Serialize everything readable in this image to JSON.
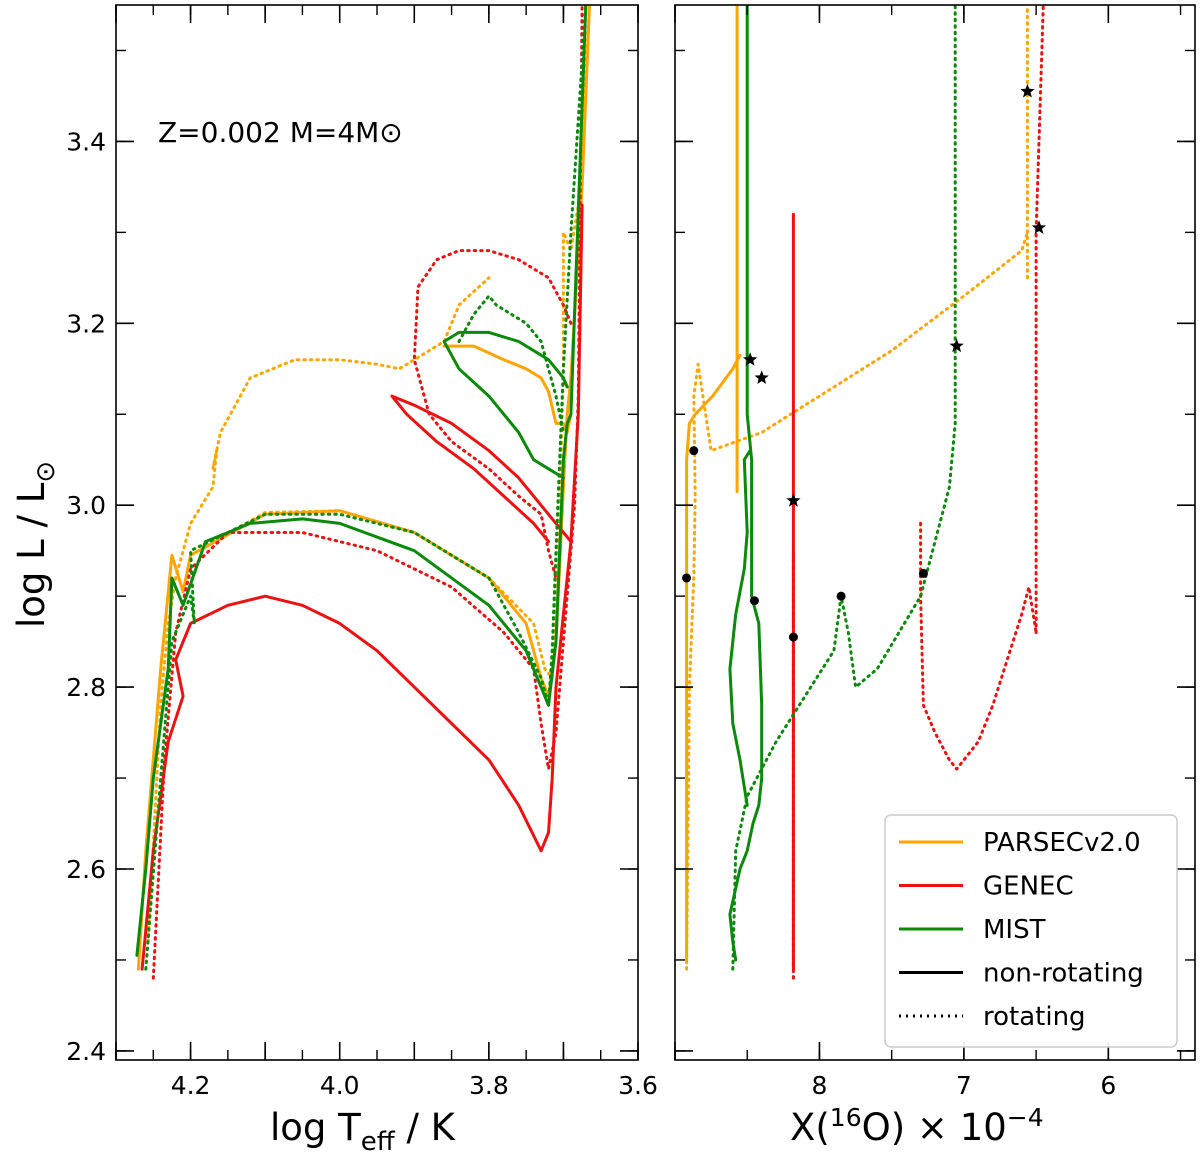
{
  "chart_data": [
    {
      "type": "line",
      "panel": "left",
      "annotation": "Z=0.002  M=4M⊙",
      "xlabel_main": "log T",
      "xlabel_sub": "eff",
      "xlabel_tail": " / K",
      "ylabel_main": "log L / L",
      "ylabel_sub": "⊙",
      "xlim": [
        4.3,
        3.6
      ],
      "ylim": [
        2.39,
        3.55
      ],
      "xticks": [
        4.2,
        4.0,
        3.8,
        3.6
      ],
      "xtick_labels": [
        "4.2",
        "4.0",
        "3.8",
        "3.6"
      ],
      "yticks": [
        2.4,
        2.6,
        2.8,
        3.0,
        3.2,
        3.4
      ],
      "ytick_labels": [
        "2.4",
        "2.6",
        "2.8",
        "3.0",
        "3.2",
        "3.4"
      ],
      "series": [
        {
          "name": "PARSEC rotating",
          "model": "PARSECv2.0",
          "color": "#ffa500",
          "style": "dotted",
          "x": [
            4.257,
            4.24,
            4.23,
            4.22,
            4.2,
            4.17,
            4.165,
            4.17,
            4.16,
            4.12,
            4.06,
            4.0,
            3.95,
            3.92,
            3.9,
            3.86,
            3.84,
            3.8
          ],
          "y": [
            2.52,
            2.78,
            2.87,
            2.92,
            2.98,
            3.02,
            3.06,
            3.04,
            3.08,
            3.14,
            3.16,
            3.16,
            3.155,
            3.15,
            3.16,
            3.18,
            3.22,
            3.25
          ]
        },
        {
          "name": "PARSEC rotating RGB",
          "model": "PARSECv2.0",
          "color": "#ffa500",
          "style": "dotted",
          "x": [
            4.2,
            4.1,
            4.0,
            3.9,
            3.8,
            3.74,
            3.725,
            3.715,
            3.71,
            3.705,
            3.7,
            3.7,
            3.69,
            3.68,
            3.665
          ],
          "y": [
            2.945,
            2.992,
            2.994,
            2.97,
            2.92,
            2.87,
            2.82,
            2.81,
            2.88,
            3.0,
            3.15,
            3.3,
            3.28,
            3.33,
            3.55
          ]
        },
        {
          "name": "PARSEC non-rotating",
          "model": "PARSECv2.0",
          "color": "#ffa500",
          "style": "solid",
          "x": [
            4.27,
            4.26,
            4.24,
            4.225,
            4.21,
            4.2,
            4.1,
            4.0,
            3.9,
            3.8,
            3.75,
            3.73,
            3.72,
            3.71,
            3.7,
            3.695,
            3.69,
            3.675,
            3.665
          ],
          "y": [
            2.49,
            2.62,
            2.82,
            2.945,
            2.905,
            2.945,
            2.99,
            2.994,
            2.97,
            2.92,
            2.87,
            2.81,
            2.79,
            2.85,
            3.02,
            3.1,
            3.14,
            3.35,
            3.55
          ]
        },
        {
          "name": "PARSEC blue loop",
          "model": "PARSECv2.0",
          "color": "#ffa500",
          "style": "solid",
          "x": [
            3.86,
            3.82,
            3.78,
            3.75,
            3.73,
            3.72,
            3.71,
            3.7,
            3.695,
            3.69
          ],
          "y": [
            3.175,
            3.175,
            3.16,
            3.15,
            3.14,
            3.125,
            3.09,
            3.09,
            3.08,
            3.1
          ]
        },
        {
          "name": "GENEC rotating",
          "model": "GENEC",
          "color": "#ee1111",
          "style": "dotted",
          "x": [
            4.25,
            4.235,
            4.22,
            4.2,
            4.15,
            4.05,
            3.95,
            3.85,
            3.78,
            3.74,
            3.73,
            3.72,
            3.71,
            3.7,
            3.685,
            3.68,
            3.675
          ],
          "y": [
            2.48,
            2.72,
            2.86,
            2.93,
            2.97,
            2.97,
            2.95,
            2.91,
            2.86,
            2.82,
            2.76,
            2.71,
            2.75,
            2.85,
            3.0,
            3.12,
            3.55
          ]
        },
        {
          "name": "GENEC rotating loop",
          "model": "GENEC",
          "color": "#ee1111",
          "style": "dotted",
          "x": [
            3.69,
            3.7,
            3.72,
            3.76,
            3.8,
            3.84,
            3.87,
            3.895,
            3.9,
            3.88,
            3.85,
            3.8,
            3.76,
            3.73,
            3.72,
            3.71
          ],
          "y": [
            3.2,
            3.22,
            3.25,
            3.27,
            3.28,
            3.28,
            3.27,
            3.24,
            3.16,
            3.1,
            3.07,
            3.04,
            3.01,
            2.99,
            2.95,
            2.92
          ]
        },
        {
          "name": "GENEC non-rotating",
          "model": "GENEC",
          "color": "#ee1111",
          "style": "solid",
          "x": [
            4.265,
            4.25,
            4.23,
            4.21,
            4.22,
            4.2,
            4.15,
            4.1,
            4.05,
            4.0,
            3.95,
            3.9,
            3.85,
            3.8,
            3.76,
            3.73,
            3.72,
            3.715,
            3.71,
            3.7,
            3.695,
            3.69,
            3.68,
            3.675
          ],
          "y": [
            2.49,
            2.62,
            2.74,
            2.79,
            2.83,
            2.87,
            2.89,
            2.9,
            2.89,
            2.87,
            2.84,
            2.8,
            2.76,
            2.72,
            2.67,
            2.62,
            2.64,
            2.7,
            2.8,
            2.88,
            2.92,
            2.96,
            3.1,
            3.33
          ]
        },
        {
          "name": "GENEC blue loop",
          "model": "GENEC",
          "color": "#ee1111",
          "style": "solid",
          "x": [
            3.69,
            3.72,
            3.76,
            3.8,
            3.85,
            3.9,
            3.93,
            3.91,
            3.87,
            3.82,
            3.78,
            3.74,
            3.72
          ],
          "y": [
            2.96,
            2.99,
            3.03,
            3.06,
            3.09,
            3.11,
            3.12,
            3.1,
            3.07,
            3.04,
            3.01,
            2.98,
            2.96
          ]
        },
        {
          "name": "MIST rotating",
          "model": "MIST",
          "color": "#0a8a0a",
          "style": "dotted",
          "x": [
            4.26,
            4.24,
            4.225,
            4.21,
            4.2,
            4.195,
            4.2,
            4.1,
            4.0,
            3.9,
            3.8,
            3.76,
            3.73,
            3.72,
            3.715,
            3.71,
            3.705,
            3.7,
            3.69,
            3.67
          ],
          "y": [
            2.49,
            2.7,
            2.85,
            2.88,
            2.9,
            2.87,
            2.95,
            2.99,
            2.99,
            2.97,
            2.92,
            2.86,
            2.81,
            2.78,
            2.84,
            2.95,
            3.05,
            3.15,
            3.3,
            3.55
          ]
        },
        {
          "name": "MIST rotating loop",
          "model": "MIST",
          "color": "#0a8a0a",
          "style": "dotted",
          "x": [
            3.84,
            3.82,
            3.8,
            3.79,
            3.77,
            3.75,
            3.73,
            3.72,
            3.71,
            3.7
          ],
          "y": [
            3.18,
            3.21,
            3.23,
            3.22,
            3.21,
            3.2,
            3.18,
            3.15,
            3.12,
            3.08
          ]
        },
        {
          "name": "MIST non-rotating",
          "model": "MIST",
          "color": "#0a8a0a",
          "style": "solid",
          "x": [
            4.272,
            4.26,
            4.25,
            4.23,
            4.225,
            4.21,
            4.18,
            4.12,
            4.05,
            4.0,
            3.9,
            3.8,
            3.75,
            3.725,
            3.72,
            3.71,
            3.705,
            3.7,
            3.695,
            3.69,
            3.67
          ],
          "y": [
            2.505,
            2.6,
            2.7,
            2.82,
            2.92,
            2.89,
            2.96,
            2.98,
            2.985,
            2.98,
            2.95,
            2.89,
            2.84,
            2.79,
            2.78,
            2.85,
            2.95,
            3.05,
            3.09,
            3.1,
            3.55
          ]
        },
        {
          "name": "MIST blue loop",
          "model": "MIST",
          "color": "#0a8a0a",
          "style": "solid",
          "x": [
            3.695,
            3.7,
            3.72,
            3.76,
            3.8,
            3.84,
            3.86,
            3.84,
            3.8,
            3.76,
            3.74,
            3.72,
            3.7
          ],
          "y": [
            3.13,
            3.14,
            3.16,
            3.18,
            3.19,
            3.19,
            3.18,
            3.15,
            3.12,
            3.08,
            3.05,
            3.04,
            3.03
          ]
        }
      ]
    },
    {
      "type": "line",
      "panel": "right",
      "xlabel_main": "X(",
      "xlabel_sup1": "16",
      "xlabel_mid": "O) × 10",
      "xlabel_sup2": "−4",
      "xlim": [
        9.0,
        5.4
      ],
      "ylim": [
        2.39,
        3.55
      ],
      "xticks": [
        8,
        7,
        6
      ],
      "xtick_labels": [
        "8",
        "7",
        "6"
      ],
      "series": [
        {
          "name": "PARSEC non-rotating",
          "model": "PARSECv2.0",
          "color": "#ffa500",
          "style": "solid",
          "x": [
            8.92,
            8.92,
            8.92,
            8.9,
            8.86,
            8.74,
            8.6,
            8.55
          ],
          "y": [
            2.5,
            2.8,
            3.05,
            3.09,
            3.1,
            3.12,
            3.15,
            3.165
          ]
        },
        {
          "name": "PARSEC non-rotating vertical",
          "model": "PARSECv2.0",
          "color": "#ffa500",
          "style": "solid",
          "x": [
            8.57,
            8.57
          ],
          "y": [
            3.015,
            3.55
          ]
        },
        {
          "name": "PARSEC rotating",
          "model": "PARSECv2.0",
          "color": "#ffa500",
          "style": "dotted",
          "x": [
            8.92,
            8.9,
            8.87,
            8.86,
            8.87,
            8.84,
            8.75,
            8.4,
            8.0,
            7.5,
            7.0,
            6.6,
            6.56
          ],
          "y": [
            2.49,
            2.8,
            2.92,
            3.01,
            3.12,
            3.155,
            3.06,
            3.08,
            3.12,
            3.17,
            3.23,
            3.28,
            3.3
          ]
        },
        {
          "name": "PARSEC rotating vertical",
          "model": "PARSECv2.0",
          "color": "#ffa500",
          "style": "dotted",
          "x": [
            6.56,
            6.56
          ],
          "y": [
            3.25,
            3.55
          ]
        },
        {
          "name": "GENEC non-rotating",
          "model": "GENEC",
          "color": "#ee1111",
          "style": "solid",
          "x": [
            8.18,
            8.18
          ],
          "y": [
            2.49,
            3.32
          ]
        },
        {
          "name": "GENEC rotating",
          "model": "GENEC",
          "color": "#ee1111",
          "style": "dotted",
          "x": [
            8.18,
            8.18
          ],
          "y": [
            2.48,
            2.95
          ]
        },
        {
          "name": "GENEC rotating loop",
          "model": "GENEC",
          "color": "#ee1111",
          "style": "dotted",
          "x": [
            7.3,
            7.3,
            7.28,
            7.2,
            7.1,
            7.05,
            6.9,
            6.8,
            6.7,
            6.6,
            6.55,
            6.5
          ],
          "y": [
            2.98,
            2.9,
            2.78,
            2.75,
            2.72,
            2.71,
            2.74,
            2.78,
            2.83,
            2.88,
            2.91,
            2.86
          ]
        },
        {
          "name": "GENEC rotating vertical",
          "model": "GENEC",
          "color": "#ee1111",
          "style": "dotted",
          "x": [
            6.5,
            6.5,
            6.45
          ],
          "y": [
            2.86,
            3.3,
            3.55
          ]
        },
        {
          "name": "MIST non-rotating",
          "model": "MIST",
          "color": "#0a8a0a",
          "style": "solid",
          "x": [
            8.58,
            8.6,
            8.62,
            8.55,
            8.5,
            8.46,
            8.42,
            8.4,
            8.4,
            8.42,
            8.47,
            8.47,
            8.5,
            8.5,
            8.5
          ],
          "y": [
            2.5,
            2.52,
            2.55,
            2.6,
            2.62,
            2.65,
            2.67,
            2.7,
            2.78,
            2.87,
            2.9,
            3.05,
            3.1,
            3.3,
            3.55
          ]
        },
        {
          "name": "MIST non-rotating inner",
          "model": "MIST",
          "color": "#0a8a0a",
          "style": "solid",
          "x": [
            8.5,
            8.55,
            8.6,
            8.62,
            8.58,
            8.52,
            8.5,
            8.52,
            8.48
          ],
          "y": [
            2.67,
            2.72,
            2.76,
            2.82,
            2.88,
            2.93,
            2.97,
            3.05,
            3.06
          ]
        },
        {
          "name": "MIST rotating",
          "model": "MIST",
          "color": "#0a8a0a",
          "style": "dotted",
          "x": [
            8.6,
            8.58,
            8.5,
            8.3,
            8.1,
            7.9,
            7.85,
            7.8,
            7.75,
            7.6,
            7.3,
            7.1,
            7.06,
            7.06
          ],
          "y": [
            2.49,
            2.62,
            2.68,
            2.74,
            2.79,
            2.84,
            2.9,
            2.86,
            2.8,
            2.82,
            2.9,
            3.02,
            3.09,
            3.55
          ]
        }
      ],
      "markers": [
        {
          "shape": "dot",
          "x": 8.92,
          "y": 2.92
        },
        {
          "shape": "dot",
          "x": 8.87,
          "y": 3.06
        },
        {
          "shape": "dot",
          "x": 8.45,
          "y": 2.895
        },
        {
          "shape": "dot",
          "x": 8.18,
          "y": 2.855
        },
        {
          "shape": "dot",
          "x": 7.85,
          "y": 2.9
        },
        {
          "shape": "dot",
          "x": 7.28,
          "y": 2.925
        },
        {
          "shape": "star",
          "x": 8.48,
          "y": 3.16
        },
        {
          "shape": "star",
          "x": 8.4,
          "y": 3.14
        },
        {
          "shape": "star",
          "x": 8.18,
          "y": 3.005
        },
        {
          "shape": "star",
          "x": 7.05,
          "y": 3.175
        },
        {
          "shape": "star",
          "x": 6.56,
          "y": 3.455
        },
        {
          "shape": "star",
          "x": 6.48,
          "y": 3.305
        }
      ],
      "legend": {
        "position": "bottom-right",
        "entries": [
          {
            "label": "PARSECv2.0",
            "color": "#ffa500",
            "style": "solid"
          },
          {
            "label": "GENEC",
            "color": "#ee1111",
            "style": "solid"
          },
          {
            "label": "MIST",
            "color": "#0a8a0a",
            "style": "solid"
          },
          {
            "label": "non-rotating",
            "color": "#000000",
            "style": "solid"
          },
          {
            "label": "rotating",
            "color": "#000000",
            "style": "dotted"
          }
        ]
      }
    }
  ]
}
